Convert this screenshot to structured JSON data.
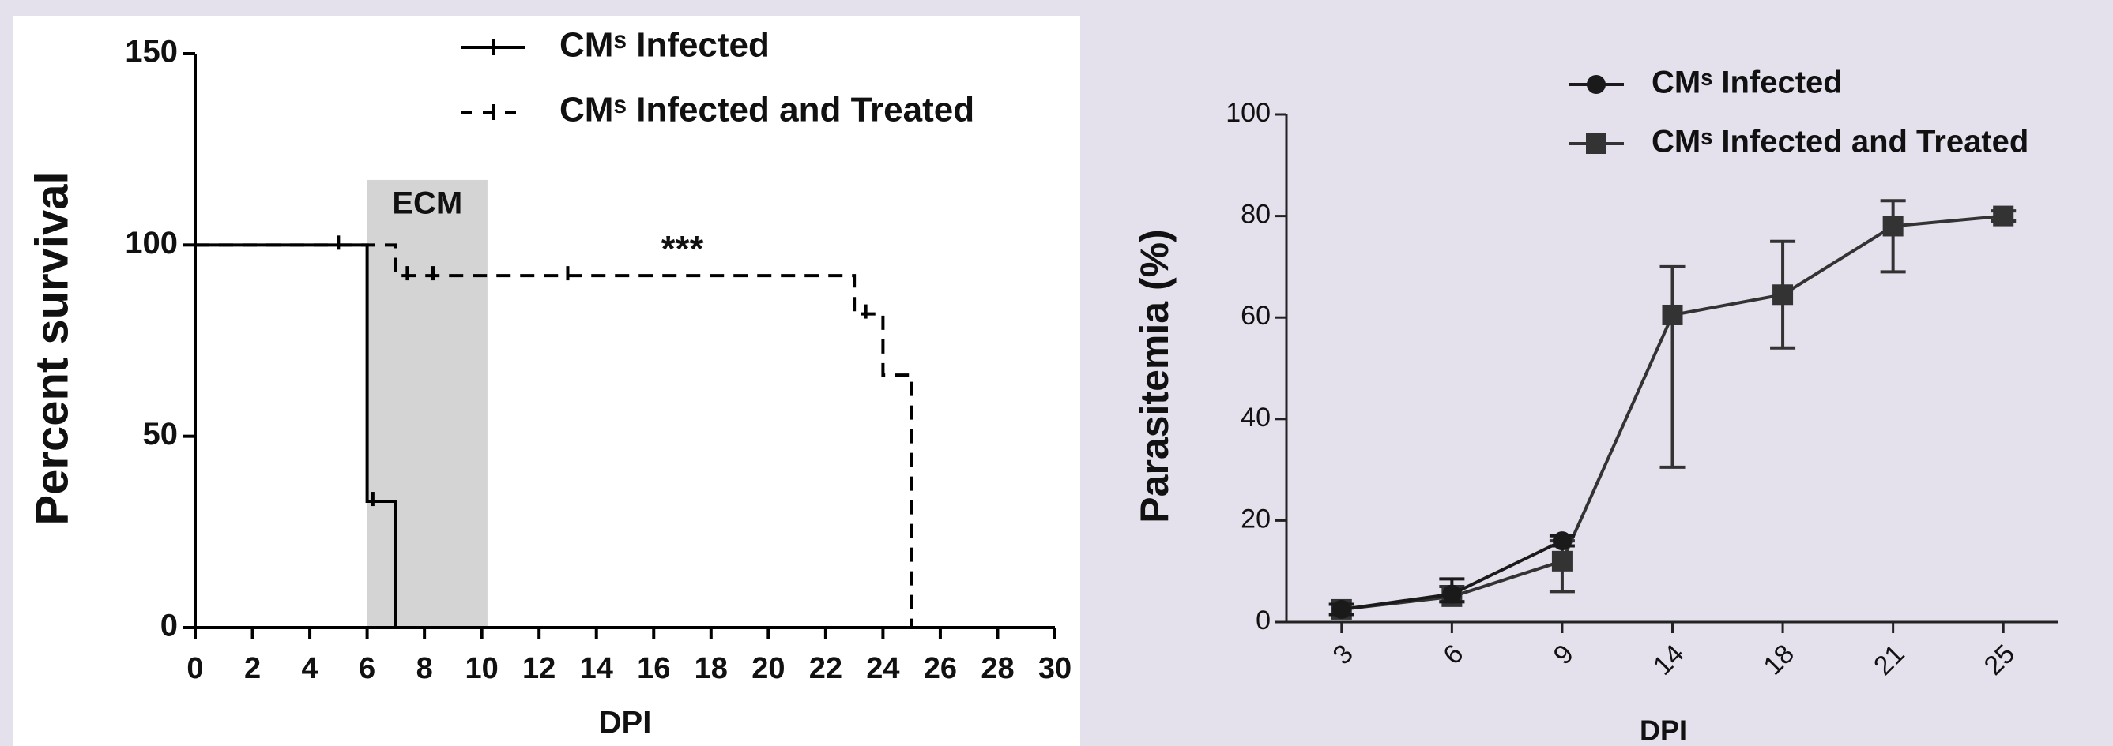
{
  "chart_data": [
    {
      "type": "step",
      "y_label": "Percent survival",
      "x_label": "DPI",
      "xlim": [
        0,
        30
      ],
      "xticks": [
        0,
        2,
        4,
        6,
        8,
        10,
        12,
        14,
        16,
        18,
        20,
        22,
        24,
        26,
        28,
        30
      ],
      "ylim": [
        0,
        150
      ],
      "yticks": [
        0,
        50,
        100,
        150
      ],
      "shaded_region": {
        "label": "ECM",
        "x0": 6,
        "x1": 10.2,
        "y1": 117
      },
      "annotation": "***",
      "series": [
        {
          "name": "CMˢ Infected",
          "color": "#000000",
          "dash": false,
          "x": [
            0,
            6,
            7
          ],
          "values": [
            100,
            33,
            0
          ],
          "censored": [
            5,
            6.2
          ]
        },
        {
          "name": "CMˢ Infected and Treated",
          "color": "#000000",
          "dash": true,
          "x": [
            0,
            7,
            23,
            24,
            25
          ],
          "values": [
            100,
            92,
            82,
            66,
            0
          ],
          "censored": [
            7.4,
            8.3,
            13,
            23.4
          ]
        }
      ]
    },
    {
      "type": "line",
      "y_label": "Parasitemia (%)",
      "x_label": "DPI",
      "categories": [
        "3",
        "6",
        "9",
        "14",
        "18",
        "21",
        "25"
      ],
      "ylim": [
        0,
        100
      ],
      "yticks": [
        0,
        20,
        40,
        60,
        80,
        100
      ],
      "series": [
        {
          "name": "CMˢ Infected",
          "color": "#1a1a1a",
          "marker": "circle",
          "values": [
            2.5,
            5.5,
            16,
            null,
            null,
            null,
            null
          ],
          "errors_minus": [
            1,
            1.5,
            1,
            null,
            null,
            null,
            null
          ],
          "errors_plus": [
            1,
            3,
            1,
            null,
            null,
            null,
            null
          ]
        },
        {
          "name": "CMˢ Infected and Treated",
          "color": "#333333",
          "marker": "square",
          "values": [
            2.5,
            5,
            12,
            60.5,
            64.5,
            78,
            80
          ],
          "errors_minus": [
            1,
            1,
            6,
            30,
            10.5,
            9,
            1
          ],
          "errors_plus": [
            1,
            2,
            4,
            9.5,
            10.5,
            5,
            1
          ]
        }
      ]
    }
  ]
}
